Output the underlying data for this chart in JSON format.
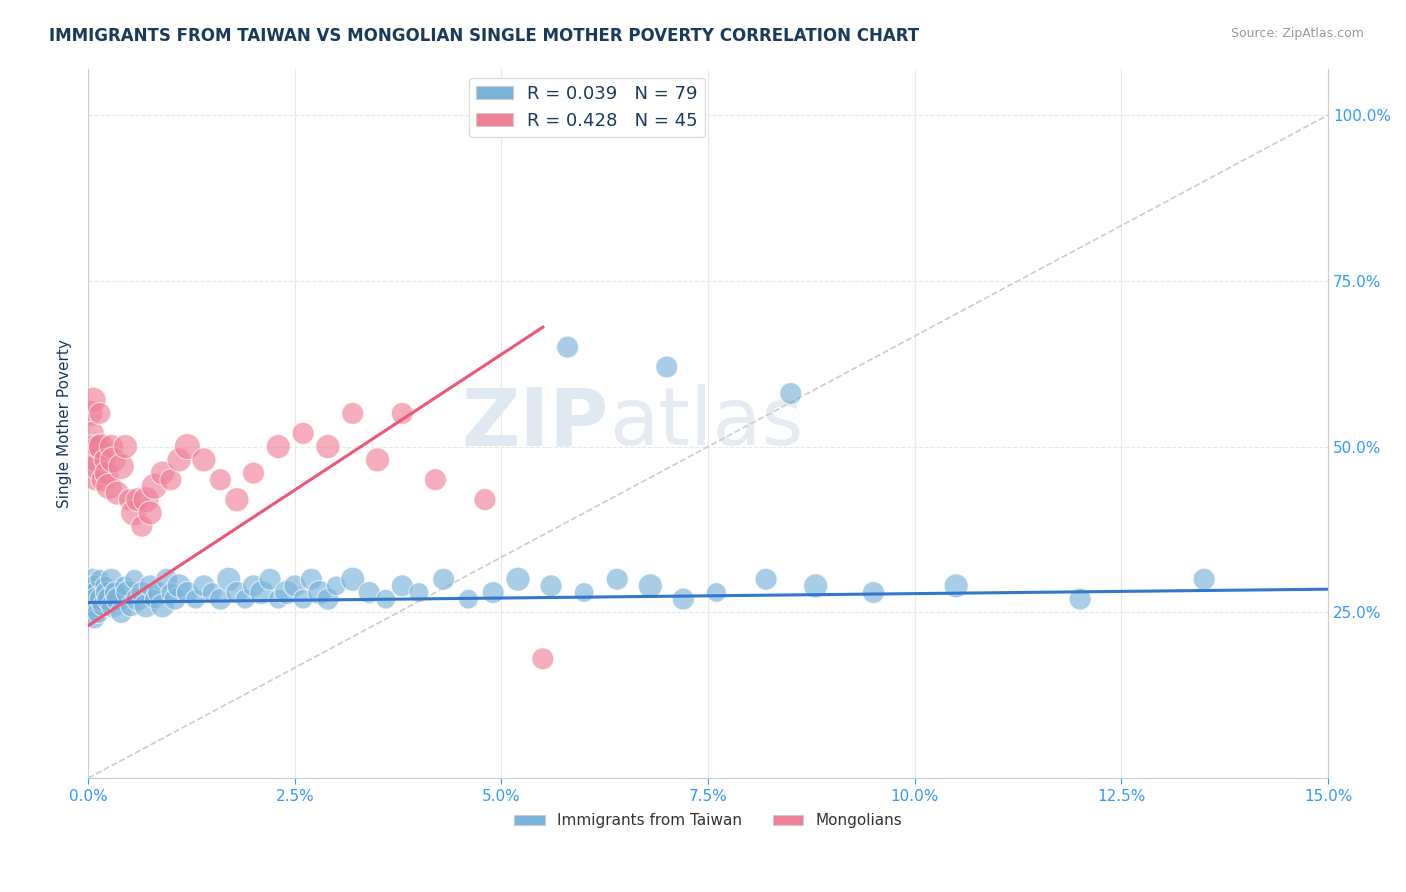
{
  "title": "IMMIGRANTS FROM TAIWAN VS MONGOLIAN SINGLE MOTHER POVERTY CORRELATION CHART",
  "source": "Source: ZipAtlas.com",
  "ylabel": "Single Mother Poverty",
  "x_ticks": [
    0,
    2.5,
    5.0,
    7.5,
    10.0,
    12.5,
    15.0
  ],
  "y_ticks": [
    25.0,
    50.0,
    75.0,
    100.0
  ],
  "xlim": [
    0,
    15.0
  ],
  "ylim": [
    0,
    107
  ],
  "legend_series": [
    {
      "label": "Immigrants from Taiwan",
      "color": "#a8c8e8",
      "R": 0.039,
      "N": 79
    },
    {
      "label": "Mongolians",
      "color": "#f0a0b8",
      "R": 0.428,
      "N": 45
    }
  ],
  "blue_scatter_x": [
    0.02,
    0.03,
    0.04,
    0.05,
    0.06,
    0.07,
    0.08,
    0.09,
    0.1,
    0.12,
    0.14,
    0.16,
    0.18,
    0.2,
    0.22,
    0.25,
    0.28,
    0.3,
    0.33,
    0.36,
    0.4,
    0.44,
    0.48,
    0.52,
    0.56,
    0.6,
    0.65,
    0.7,
    0.75,
    0.8,
    0.85,
    0.9,
    0.95,
    1.0,
    1.05,
    1.1,
    1.2,
    1.3,
    1.4,
    1.5,
    1.6,
    1.7,
    1.8,
    1.9,
    2.0,
    2.1,
    2.2,
    2.3,
    2.4,
    2.5,
    2.6,
    2.7,
    2.8,
    2.9,
    3.0,
    3.2,
    3.4,
    3.6,
    3.8,
    4.0,
    4.3,
    4.6,
    4.9,
    5.2,
    5.6,
    6.0,
    6.4,
    6.8,
    7.2,
    7.6,
    8.2,
    8.8,
    9.5,
    10.5,
    12.0,
    13.5,
    5.8,
    7.0,
    8.5
  ],
  "blue_scatter_y": [
    28,
    27,
    25,
    30,
    26,
    29,
    24,
    28,
    27,
    25,
    30,
    27,
    26,
    29,
    28,
    27,
    30,
    26,
    28,
    27,
    25,
    29,
    28,
    26,
    30,
    27,
    28,
    26,
    29,
    27,
    28,
    26,
    30,
    28,
    27,
    29,
    28,
    27,
    29,
    28,
    27,
    30,
    28,
    27,
    29,
    28,
    30,
    27,
    28,
    29,
    27,
    30,
    28,
    27,
    29,
    30,
    28,
    27,
    29,
    28,
    30,
    27,
    28,
    30,
    29,
    28,
    30,
    29,
    27,
    28,
    30,
    29,
    28,
    29,
    27,
    30,
    65,
    62,
    58
  ],
  "blue_scatter_sizes": [
    30,
    25,
    20,
    25,
    30,
    25,
    20,
    25,
    30,
    25,
    20,
    30,
    25,
    20,
    25,
    30,
    25,
    30,
    25,
    30,
    25,
    20,
    30,
    25,
    20,
    30,
    25,
    30,
    25,
    20,
    25,
    30,
    25,
    20,
    25,
    30,
    25,
    20,
    25,
    20,
    25,
    30,
    25,
    20,
    25,
    30,
    25,
    20,
    30,
    25,
    20,
    25,
    30,
    25,
    20,
    30,
    25,
    20,
    25,
    20,
    25,
    20,
    25,
    30,
    25,
    20,
    25,
    30,
    25,
    20,
    25,
    30,
    25,
    30,
    25,
    25,
    25,
    25,
    25
  ],
  "pink_scatter_x": [
    0.02,
    0.03,
    0.04,
    0.05,
    0.06,
    0.07,
    0.08,
    0.09,
    0.1,
    0.12,
    0.14,
    0.16,
    0.18,
    0.2,
    0.22,
    0.25,
    0.28,
    0.3,
    0.35,
    0.4,
    0.45,
    0.5,
    0.55,
    0.6,
    0.65,
    0.7,
    0.75,
    0.8,
    0.9,
    1.0,
    1.1,
    1.2,
    1.4,
    1.6,
    1.8,
    2.0,
    2.3,
    2.6,
    2.9,
    3.2,
    3.5,
    3.8,
    4.2,
    4.8,
    5.5
  ],
  "pink_scatter_y": [
    55,
    50,
    48,
    52,
    57,
    50,
    45,
    48,
    47,
    50,
    55,
    50,
    45,
    48,
    46,
    44,
    50,
    48,
    43,
    47,
    50,
    42,
    40,
    42,
    38,
    42,
    40,
    44,
    46,
    45,
    48,
    50,
    48,
    45,
    42,
    46,
    50,
    52,
    50,
    55,
    48,
    55,
    45,
    42,
    18
  ],
  "pink_scatter_sizes": [
    35,
    30,
    25,
    30,
    35,
    30,
    25,
    30,
    35,
    30,
    25,
    35,
    30,
    25,
    30,
    35,
    30,
    35,
    30,
    35,
    30,
    25,
    35,
    30,
    25,
    35,
    30,
    35,
    30,
    25,
    30,
    35,
    30,
    25,
    30,
    25,
    30,
    25,
    30,
    25,
    30,
    25,
    25,
    25,
    25
  ],
  "blue_line_x": [
    0.0,
    15.0
  ],
  "blue_line_y": [
    26.5,
    28.5
  ],
  "pink_line_x": [
    0.0,
    5.5
  ],
  "pink_line_y": [
    23.0,
    68.0
  ],
  "diag_line_x": [
    0.0,
    15.0
  ],
  "diag_line_y": [
    0.0,
    100.0
  ],
  "watermark_zip": "ZIP",
  "watermark_atlas": "atlas",
  "bg_color": "#ffffff",
  "plot_bg_color": "#ffffff",
  "title_color": "#1a3a5c",
  "tick_color": "#3399ff",
  "blue_color": "#7ab3d9",
  "pink_color": "#f08098",
  "blue_line_color": "#3377cc",
  "pink_line_color": "#ee5577",
  "diag_color": "#cccccc",
  "grid_color": "#e8e8e8"
}
